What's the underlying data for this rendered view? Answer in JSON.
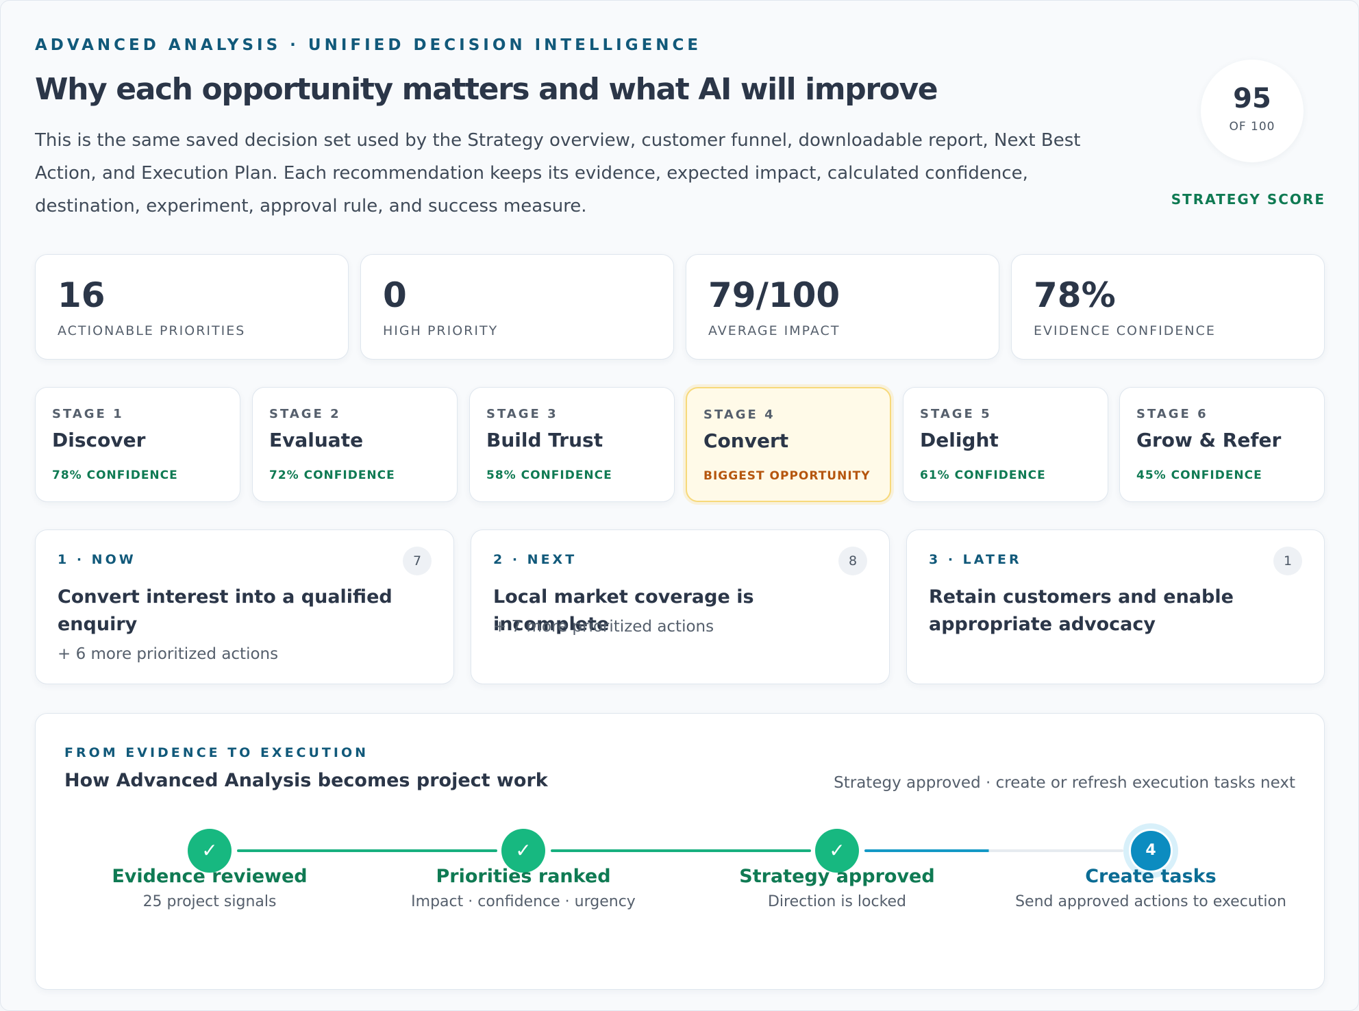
{
  "header": {
    "eyebrow": "ADVANCED ANALYSIS · UNIFIED DECISION INTELLIGENCE",
    "title": "Why each opportunity matters and what AI will improve",
    "intro": "This is the same saved decision set used by the Strategy overview, customer funnel, downloadable report, Next Best Action, and Execution Plan. Each recommendation keeps its evidence, expected impact, calculated confidence, destination, experiment, approval rule, and success measure."
  },
  "score": {
    "value": "95",
    "of": "OF 100",
    "label": "STRATEGY SCORE"
  },
  "metrics": [
    {
      "value": "16",
      "label": "ACTIONABLE PRIORITIES"
    },
    {
      "value": "0",
      "label": "HIGH PRIORITY"
    },
    {
      "value": "79/100",
      "label": "AVERAGE IMPACT"
    },
    {
      "value": "78%",
      "label": "EVIDENCE CONFIDENCE"
    }
  ],
  "stages": [
    {
      "num": "STAGE 1",
      "name": "Discover",
      "sub": "78% CONFIDENCE"
    },
    {
      "num": "STAGE 2",
      "name": "Evaluate",
      "sub": "72% CONFIDENCE"
    },
    {
      "num": "STAGE 3",
      "name": "Build Trust",
      "sub": "58% CONFIDENCE"
    },
    {
      "num": "STAGE 4",
      "name": "Convert",
      "sub": "BIGGEST OPPORTUNITY"
    },
    {
      "num": "STAGE 5",
      "name": "Delight",
      "sub": "61% CONFIDENCE"
    },
    {
      "num": "STAGE 6",
      "name": "Grow & Refer",
      "sub": "45% CONFIDENCE"
    }
  ],
  "lanes": [
    {
      "tag": "1 · NOW",
      "count": "7",
      "title": "Convert interest into a qualified enquiry",
      "more": "+ 6 more prioritized actions"
    },
    {
      "tag": "2 · NEXT",
      "count": "8",
      "title": "Local market coverage is incomplete",
      "more": "+ 7 more prioritized actions"
    },
    {
      "tag": "3 · LATER",
      "count": "1",
      "title": "Retain customers and enable appropriate advocacy",
      "more": ""
    }
  ],
  "flow": {
    "tag": "FROM EVIDENCE TO EXECUTION",
    "title": "How Advanced Analysis becomes project work",
    "status": "Strategy approved · create or refresh execution tasks next",
    "steps": [
      {
        "mark": "✓",
        "label": "Evidence reviewed",
        "sub": "25 project signals"
      },
      {
        "mark": "✓",
        "label": "Priorities ranked",
        "sub": "Impact · confidence · urgency"
      },
      {
        "mark": "✓",
        "label": "Strategy approved",
        "sub": "Direction is locked"
      },
      {
        "mark": "4",
        "label": "Create tasks",
        "sub": "Send approved actions to execution"
      }
    ]
  },
  "colors": {
    "accent_teal": "#11597a",
    "success_green": "#0f7a53",
    "step_done": "#17b880",
    "step_current": "#0c8cc0",
    "highlight_bg": "#fffae8",
    "highlight_text": "#b5560e"
  }
}
